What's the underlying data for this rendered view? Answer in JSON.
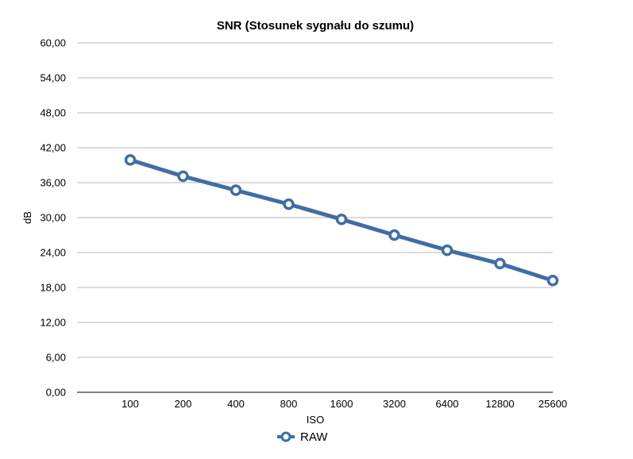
{
  "chart_data": {
    "type": "line",
    "title": "SNR (Stosunek sygnału do szumu)",
    "xlabel": "ISO",
    "ylabel": "dB",
    "categories": [
      "100",
      "200",
      "400",
      "800",
      "1600",
      "3200",
      "6400",
      "12800",
      "25600"
    ],
    "ylim": [
      0,
      60
    ],
    "y_ticks": [
      "0,00",
      "6,00",
      "12,00",
      "18,00",
      "24,00",
      "30,00",
      "36,00",
      "42,00",
      "48,00",
      "54,00",
      "60,00"
    ],
    "grid": true,
    "legend_position": "bottom-center",
    "series": [
      {
        "name": "RAW",
        "color": "#3f6ea5",
        "marker": "hollow-circle",
        "values": [
          39.9,
          37.1,
          34.7,
          32.3,
          29.7,
          27.0,
          24.4,
          22.1,
          19.2
        ]
      }
    ]
  }
}
